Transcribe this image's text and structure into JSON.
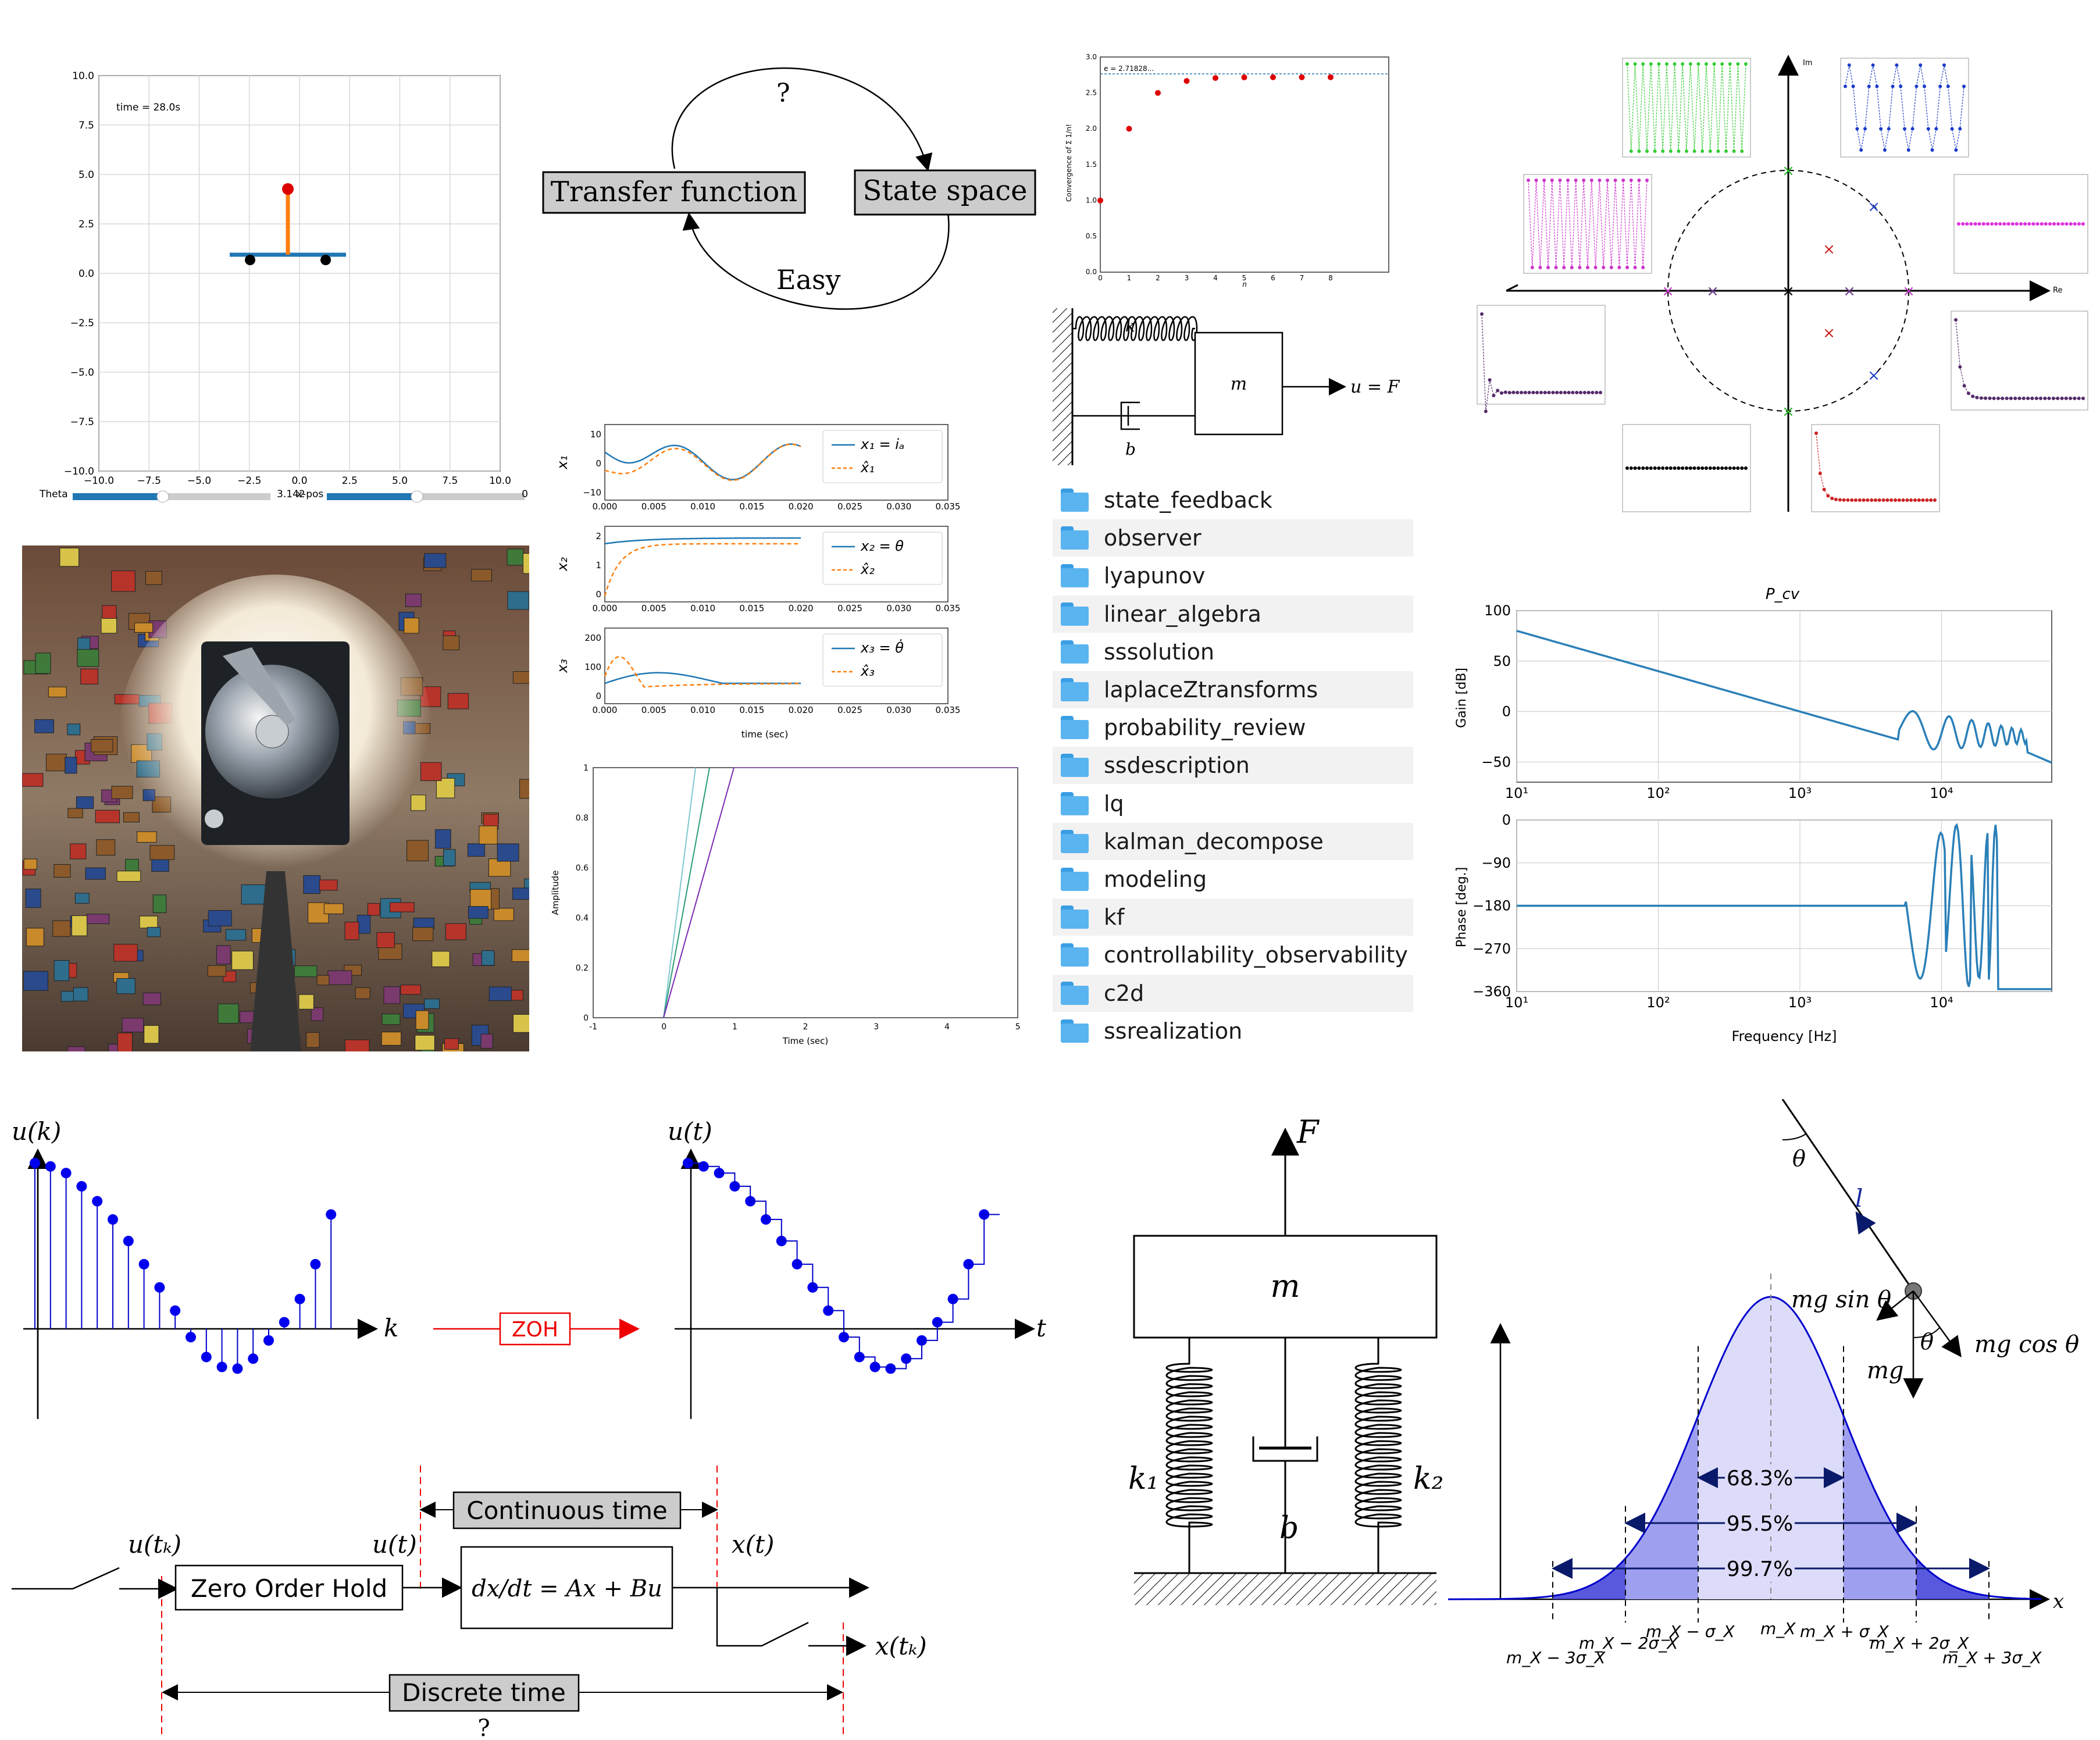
{
  "cartpole": {
    "time_text": "time = 28.0s",
    "ticks": [
      "10.0",
      "7.5",
      "5.0",
      "2.5",
      "0.0",
      "−2.5",
      "−5.0",
      "−7.5",
      "−10.0"
    ],
    "xticks": [
      "−10.0",
      "−7.5",
      "−5.0",
      "−2.5",
      "0.0",
      "2.5",
      "5.0",
      "7.5",
      "10.0"
    ],
    "slider1_label": "Theta",
    "slider1_value": "3.142",
    "slider2_label": "x-pos",
    "slider2_value": "0"
  },
  "tf_ss": {
    "question": "?",
    "left_box": "Transfer function",
    "right_box": "State space",
    "easy": "Easy"
  },
  "convergence": {
    "e_label": "e = 2.71828...",
    "ylabel": "Convergence of Σ 1/n!",
    "xlabel": "n",
    "yticks": [
      "3.0",
      "2.5",
      "2.0",
      "1.5",
      "1.0",
      "0.5",
      "0.0"
    ],
    "xticks": [
      "0",
      "1",
      "2",
      "3",
      "4",
      "5",
      "6",
      "7",
      "8"
    ]
  },
  "spring_mass": {
    "k": "k",
    "m": "m",
    "b": "b",
    "u": "u = F"
  },
  "folders": [
    "state_feedback",
    "observer",
    "lyapunov",
    "linear_algebra",
    "sssolution",
    "laplaceZtransforms",
    "probability_review",
    "ssdescription",
    "lq",
    "kalman_decompose",
    "modeling",
    "kf",
    "controllability_observability",
    "c2d",
    "ssrealization"
  ],
  "observer": {
    "y_labels": [
      "x₁",
      "x₂",
      "x₃"
    ],
    "legend": [
      [
        "x₁ = iₐ",
        "x̂₁"
      ],
      [
        "x₂ = θ",
        "x̂₂"
      ],
      [
        "x₃ = θ̇",
        "x̂₃"
      ]
    ],
    "xticks": [
      "0.000",
      "0.005",
      "0.010",
      "0.015",
      "0.020",
      "0.025",
      "0.030",
      "0.035"
    ],
    "yticks1": [
      "10",
      "0",
      "−10"
    ],
    "yticks2": [
      "2",
      "1",
      "0"
    ],
    "yticks3": [
      "200",
      "100",
      "0"
    ],
    "xlabel": "time (sec)"
  },
  "ramp": {
    "ylabel": "Amplitude",
    "xlabel": "Time (sec)",
    "yticks": [
      "1",
      "0.8",
      "0.6",
      "0.4",
      "0.2",
      "0"
    ],
    "xticks": [
      "-1",
      "0",
      "1",
      "2",
      "3",
      "4",
      "5"
    ]
  },
  "pole_map": {
    "im": "Im",
    "re": "Re"
  },
  "bode": {
    "title": "P_cv",
    "gain_label": "Gain [dB]",
    "phase_label": "Phase [deg.]",
    "freq_label": "Frequency [Hz]",
    "gain_ticks": [
      "100",
      "50",
      "0",
      "−50"
    ],
    "phase_ticks": [
      "0",
      "−90",
      "−180",
      "−270",
      "−360"
    ],
    "freq_ticks": [
      "10¹",
      "10²",
      "10³",
      "10⁴"
    ]
  },
  "zoh_demo": {
    "uk": "u(k)",
    "k": "k",
    "zoh": "ZOH",
    "ut": "u(t)",
    "t": "t"
  },
  "zoh_block": {
    "continuous": "Continuous time",
    "discrete": "Discrete time",
    "question": "?",
    "utk": "u(tₖ)",
    "ut": "u(t)",
    "xt": "x(t)",
    "xtk": "x(tₖ)",
    "zoh": "Zero Order Hold",
    "ode": "dx/dt = Ax + Bu"
  },
  "suspension": {
    "F": "F",
    "m": "m",
    "k1": "k₁",
    "k2": "k₂",
    "b": "b"
  },
  "pendulum": {
    "theta": "θ",
    "l": "l",
    "mgsin": "mg sin θ",
    "mgcos": "mg cos θ",
    "mg": "mg"
  },
  "normal": {
    "p1": "68.3%",
    "p2": "95.5%",
    "p3": "99.7%",
    "x": "x",
    "labels": [
      "m_X − 3σ_X",
      "m_X − 2σ_X",
      "m_X − σ_X",
      "m_X",
      "m_X + σ_X",
      "m_X + 2σ_X",
      "m_X + 3σ_X"
    ]
  },
  "colors": {
    "blue": "#1f77b4",
    "orange": "#ff7f0e",
    "point_blue": "#0000ee",
    "red": "#dd0000",
    "gray_box": "#cccccc"
  }
}
